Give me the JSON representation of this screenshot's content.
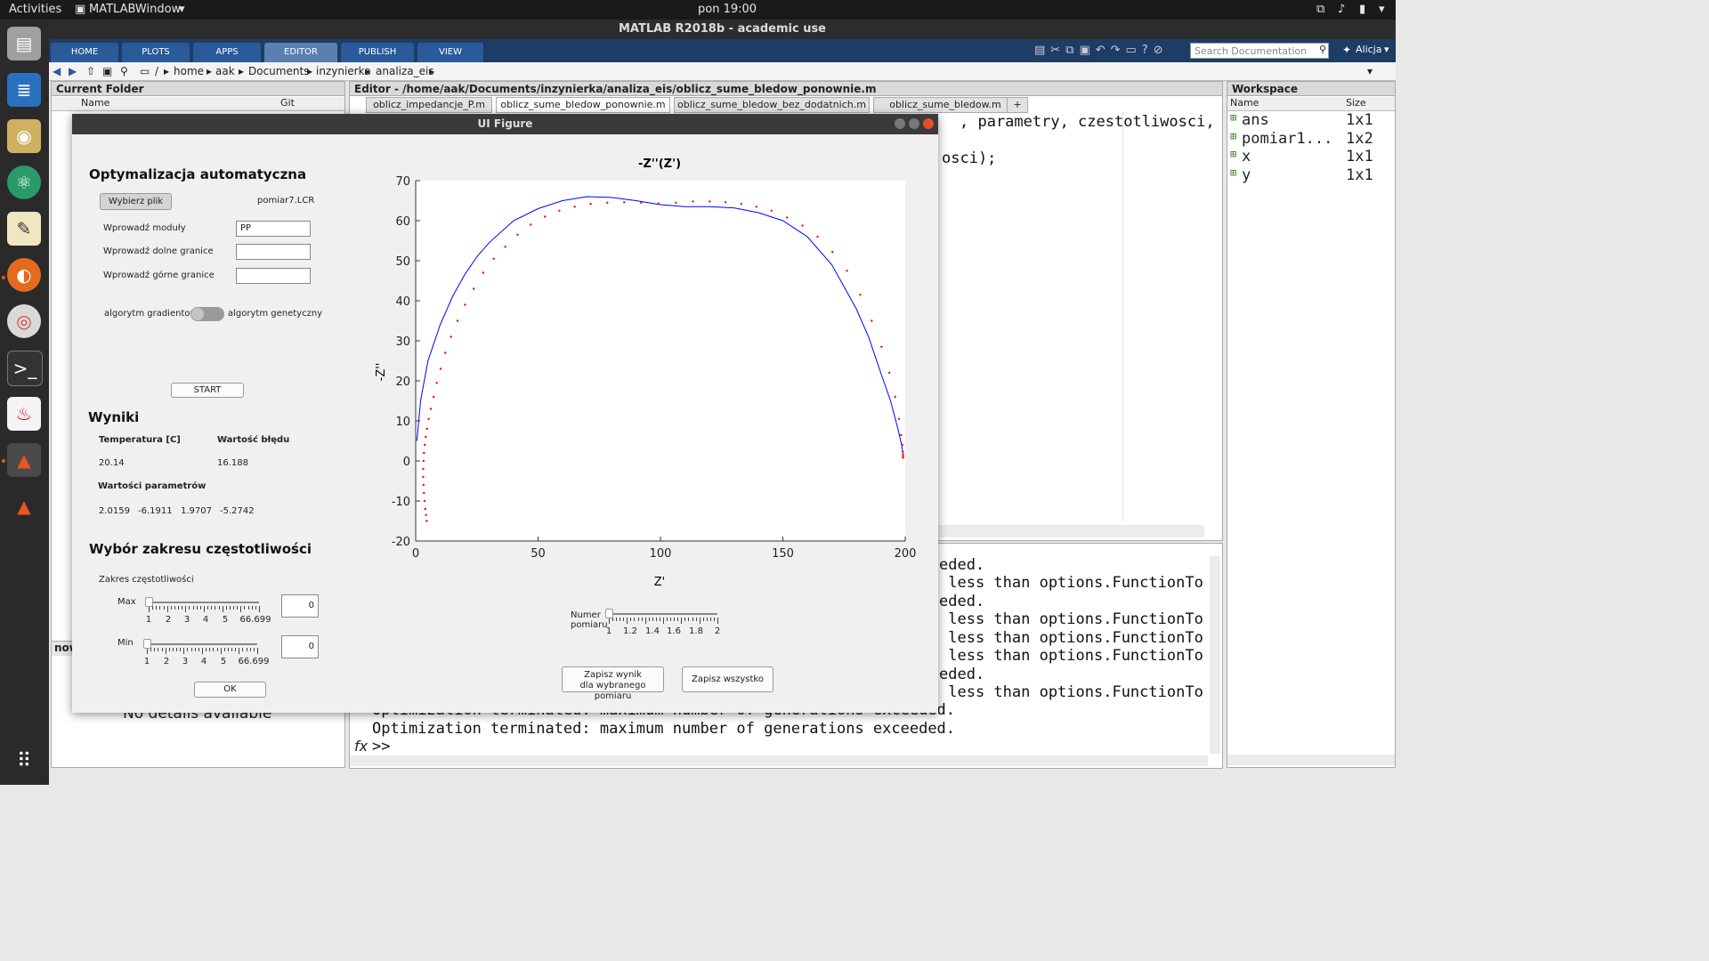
{
  "topbar": {
    "activities": "Activities",
    "app": "MATLABWindow",
    "clock": "pon 19:00"
  },
  "matlab": {
    "title": "MATLAB R2018b - academic use",
    "tabs": [
      "HOME",
      "PLOTS",
      "APPS",
      "EDITOR",
      "PUBLISH",
      "VIEW"
    ],
    "search_placeholder": "Search Documentation",
    "user": "Alicja"
  },
  "address": {
    "parts": [
      "/",
      "home",
      "aak",
      "Documents",
      "inzynierka",
      "analiza_eis"
    ]
  },
  "current_folder": {
    "title": "Current Folder",
    "col_name": "Name",
    "col_git": "Git",
    "details_head": "now",
    "details_text": "No details available"
  },
  "editor": {
    "title": "Editor - /home/aak/Documents/inzynierka/analiza_eis/oblicz_sume_bledow_ponownie.m",
    "tabs": [
      "oblicz_impedancje_P.m",
      "oblicz_sume_bledow_ponownie.m",
      "oblicz_sume_bledow_bez_dodatnich.m",
      "oblicz_sume_bledow.m"
    ],
    "line1": ", parametry, czestotliwosci,",
    "line2": "osci);"
  },
  "command": {
    "lines": [
      "eded.",
      " less than options.FunctionTo",
      "eded.",
      " less than options.FunctionTo",
      " less than options.FunctionTo",
      " less than options.FunctionTo",
      "eded.",
      " less than options.FunctionTo",
      "Optimization terminated: maximum number of generations exceeded.",
      "Optimization terminated: maximum number of generations exceeded."
    ],
    "prompt": ">>"
  },
  "workspace": {
    "title": "Workspace",
    "col_name": "Name",
    "col_size": "Size",
    "vars": [
      {
        "name": "ans",
        "size": "1x1"
      },
      {
        "name": "pomiar1...",
        "size": "1x2"
      },
      {
        "name": "x",
        "size": "1x1"
      },
      {
        "name": "y",
        "size": "1x1"
      }
    ]
  },
  "figure": {
    "title": "UI Figure",
    "section_opt": "Optymalizacja automatyczna",
    "choose_file_btn": "Wybierz plik",
    "file_name": "pomiar7.LCR",
    "modules_label": "Wprowadź moduły",
    "modules_value": "PP",
    "lower_label": "Wprowadź dolne granice",
    "lower_value": "",
    "upper_label": "Wprowadź górne granice",
    "upper_value": "",
    "algo_left": "algorytm gradientowy",
    "algo_right": "algorytm genetyczny",
    "start_btn": "START",
    "results_title": "Wyniki",
    "temp_header": "Temperatura [C]",
    "err_header": "Wartość błędu",
    "temp_value": "20.14",
    "err_value": "16.188",
    "params_header": "Wartości parametrów",
    "params": [
      "2.0159",
      "-6.1911",
      "1.9707",
      "-5.2742"
    ],
    "freq_title": "Wybór zakresu częstotliwości",
    "freq_range_label": "Zakres częstotliwości",
    "max_label": "Max",
    "min_label": "Min",
    "slider_ticks": [
      "1",
      "2",
      "3",
      "4",
      "5",
      "66.699"
    ],
    "slider_level": 0,
    "max_value": "0",
    "min_value": "0",
    "ok_btn": "OK",
    "measure_label_1": "Numer",
    "measure_label_2": "pomiaru",
    "measure_ticks": [
      "1",
      "1.2",
      "1.4",
      "1.6",
      "1.8",
      "2"
    ],
    "save_one_1": "Zapisz wynik",
    "save_one_2": "dla wybranego pomiaru",
    "save_all": "Zapisz wszystko"
  },
  "chart_data": {
    "type": "line",
    "title": "-Z''(Z')",
    "xlabel": "Z'",
    "ylabel": "-Z''",
    "xlim": [
      0,
      200
    ],
    "ylim": [
      -20,
      70
    ],
    "xticks": [
      0,
      50,
      100,
      150,
      200
    ],
    "yticks": [
      -20,
      -10,
      0,
      10,
      20,
      30,
      40,
      50,
      60,
      70
    ],
    "grid": false,
    "series": [
      {
        "style": "line",
        "color": "#0000ff",
        "x": [
          0.5,
          2,
          5,
          10,
          15,
          20,
          25,
          30,
          40,
          50,
          60,
          70,
          80,
          90,
          100,
          110,
          120,
          130,
          140,
          150,
          160,
          170,
          180,
          185,
          190,
          194,
          197,
          198.5,
          199,
          199.2
        ],
        "y": [
          5,
          15,
          25,
          34,
          41,
          46.5,
          51,
          54.5,
          60,
          63,
          65,
          66,
          65.8,
          65,
          64,
          63.5,
          63.5,
          63.2,
          62,
          60,
          56,
          49,
          38,
          31,
          22,
          15,
          8,
          4,
          2,
          1
        ]
      },
      {
        "style": "markers",
        "color": "#ff0000",
        "x": [
          4.5,
          4.2,
          3.9,
          3.6,
          3.4,
          3.2,
          3.1,
          3.1,
          3.2,
          3.4,
          3.7,
          4.1,
          4.6,
          5.3,
          6.2,
          7.3,
          8.6,
          10.2,
          12.1,
          14.4,
          17.1,
          20.2,
          23.7,
          27.6,
          31.9,
          36.6,
          41.6,
          47,
          52.8,
          58.7,
          65,
          71.5,
          78.3,
          85.2,
          92.1,
          99.2,
          106.3,
          113.3,
          120.1,
          126.6,
          133,
          139.2,
          145.4,
          151.7,
          158,
          164.2,
          170.3,
          176.2,
          181.6,
          186.3,
          190.3,
          193.5,
          195.9,
          197.4,
          198.3,
          198.8,
          199,
          199.1,
          199.1,
          199.1
        ],
        "y": [
          -15,
          -13.5,
          -12,
          -10,
          -8,
          -6,
          -4,
          -2,
          0,
          2,
          4,
          6,
          8,
          10.5,
          13,
          16,
          19.5,
          23,
          27,
          31,
          35,
          39,
          43,
          47,
          50.5,
          53.5,
          56.5,
          59,
          61,
          62.5,
          63.5,
          64.2,
          64.5,
          64.6,
          64.5,
          64.3,
          64.5,
          64.8,
          64.8,
          64.6,
          64.2,
          63.5,
          62.5,
          60.8,
          58.8,
          56,
          52.2,
          47.5,
          41.5,
          35,
          28.5,
          22,
          16,
          10.5,
          6.5,
          4,
          2.3,
          1.5,
          1,
          0.8
        ]
      }
    ]
  }
}
